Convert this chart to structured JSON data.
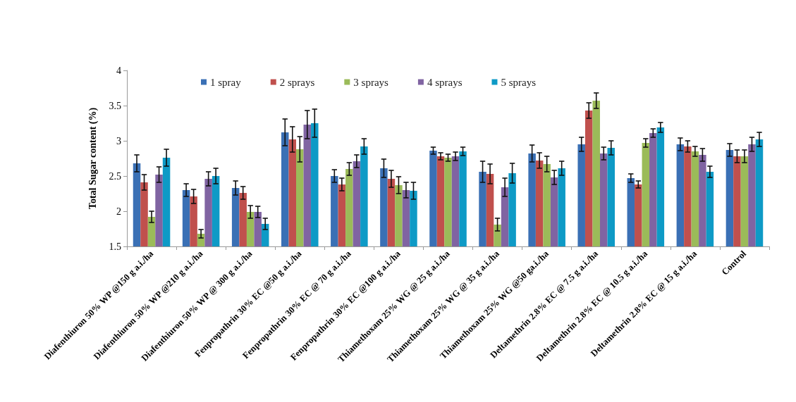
{
  "chart_data": {
    "type": "bar",
    "ylabel": "Total Sugar content (%)",
    "categories": [
      "Diafenthiuron 50% WP @150 g a.i./ha",
      "Diafenthiuron 50% WP @210 g a.i./ha",
      "Diafenthiuron 50% WP @ 300 g a.i./ha",
      "Fenpropathrin 30% EC @50 g a.i./ha",
      "Fenpropathrin 30% EC @ 70 g a.i./ha",
      "Fenpropathrin 30% EC @100 g a.i./ha",
      "Thiamethoxam 25% WG @ 25 g a.i./ha",
      "Thiamethoxam 25% WG @ 35 g a.i./ha",
      "Thiamethoxam 25% WG @50 ga.i./ha",
      "Deltamethrin 2.8% EC @ 7.5 g a.i./ha",
      "Deltamethrin 2.8% EC @ 10.5 g a.i./ha",
      "Deltamethrin 2.8% EC @ 15 g a.i./ha",
      "Control"
    ],
    "series": [
      {
        "name": "1 spray",
        "color": "#3a70b5",
        "values": [
          2.68,
          2.3,
          2.33,
          3.12,
          2.5,
          2.61,
          2.86,
          2.56,
          2.82,
          2.95,
          2.47,
          2.95,
          2.87
        ],
        "errors": [
          0.12,
          0.09,
          0.1,
          0.19,
          0.09,
          0.13,
          0.05,
          0.15,
          0.12,
          0.1,
          0.06,
          0.09,
          0.09
        ]
      },
      {
        "name": "2 sprays",
        "color": "#c0504d",
        "values": [
          2.41,
          2.21,
          2.26,
          3.02,
          2.38,
          2.46,
          2.78,
          2.53,
          2.72,
          3.43,
          2.38,
          2.92,
          2.78
        ],
        "errors": [
          0.11,
          0.1,
          0.09,
          0.18,
          0.09,
          0.12,
          0.05,
          0.14,
          0.11,
          0.11,
          0.05,
          0.08,
          0.09
        ]
      },
      {
        "name": "3 sprays",
        "color": "#9bbb59",
        "values": [
          1.92,
          1.68,
          1.99,
          2.88,
          2.6,
          2.37,
          2.76,
          1.81,
          2.67,
          3.57,
          2.97,
          2.85,
          2.78
        ],
        "errors": [
          0.08,
          0.06,
          0.09,
          0.18,
          0.09,
          0.12,
          0.05,
          0.09,
          0.11,
          0.11,
          0.06,
          0.07,
          0.09
        ]
      },
      {
        "name": "4 sprays",
        "color": "#8064a2",
        "values": [
          2.52,
          2.46,
          1.99,
          3.23,
          2.71,
          2.3,
          2.78,
          2.34,
          2.48,
          2.82,
          3.11,
          2.8,
          2.95
        ],
        "errors": [
          0.11,
          0.1,
          0.08,
          0.2,
          0.09,
          0.11,
          0.06,
          0.13,
          0.1,
          0.09,
          0.06,
          0.09,
          0.1
        ]
      },
      {
        "name": "5 sprays",
        "color": "#0e9ac6",
        "values": [
          2.76,
          2.5,
          1.82,
          3.25,
          2.92,
          2.29,
          2.85,
          2.54,
          2.61,
          2.9,
          3.19,
          2.56,
          3.02
        ],
        "errors": [
          0.12,
          0.11,
          0.08,
          0.2,
          0.11,
          0.12,
          0.06,
          0.14,
          0.1,
          0.1,
          0.07,
          0.08,
          0.1
        ]
      }
    ],
    "ylim": [
      1.5,
      4
    ],
    "yticks": [
      1.5,
      2,
      2.5,
      3,
      3.5,
      4
    ],
    "grid": false,
    "legend": "top"
  }
}
